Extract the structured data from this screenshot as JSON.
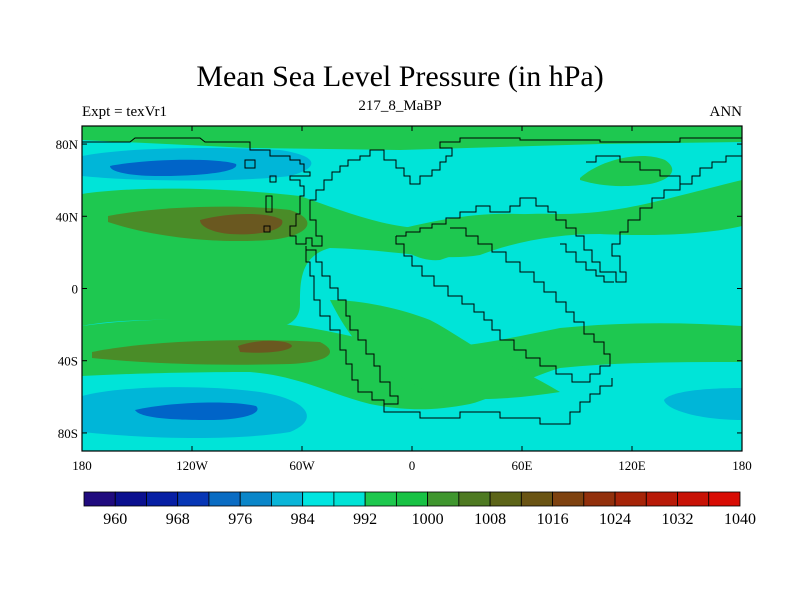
{
  "title": "Mean Sea Level Pressure (in hPa)",
  "subtitle_left": "Expt = texVr1",
  "subtitle_center": "217_8_MaBP",
  "subtitle_right": "ANN",
  "map": {
    "lon_ticks": [
      "180",
      "120W",
      "60W",
      "0",
      "60E",
      "120E",
      "180"
    ],
    "lat_ticks": [
      "80N",
      "40N",
      "0",
      "40S",
      "80S"
    ],
    "colors": {
      "ocean_fill": "#00e4d8",
      "low_light": "#00b6d8",
      "low_dark": "#0064c8",
      "high_light": "#1ec850",
      "high_mid": "#4a8c28",
      "high_dark": "#6a5820",
      "coastline": "#000000"
    }
  },
  "colorbar": {
    "levels": [
      "960",
      "968",
      "976",
      "984",
      "992",
      "1000",
      "1008",
      "1016",
      "1024",
      "1032",
      "1040"
    ],
    "colors": [
      "#200b7e",
      "#0b108f",
      "#071fa4",
      "#0736b5",
      "#0a6cc3",
      "#0a86c9",
      "#0ab5d8",
      "#00e5e0",
      "#00e3d6",
      "#1ec84e",
      "#18c244",
      "#3f962e",
      "#4e7a22",
      "#5c6418",
      "#6a5414",
      "#7e4210",
      "#92300c",
      "#a62408",
      "#b81a08",
      "#c81206",
      "#d80c04"
    ]
  }
}
